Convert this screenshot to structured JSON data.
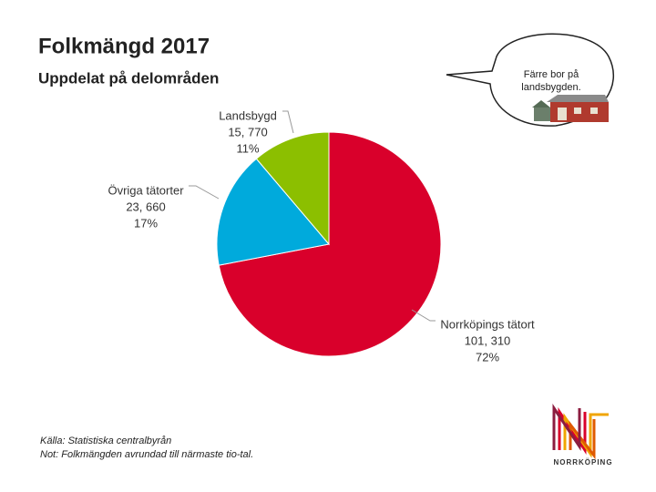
{
  "chart_data": {
    "type": "pie",
    "title": "Folkmängd 2017",
    "subtitle": "Uppdelat på delområden",
    "categories": [
      "Norrköpings tätort",
      "Övriga tätorter",
      "Landsbygd"
    ],
    "values": [
      101310,
      23660,
      15770
    ],
    "value_labels": [
      "101, 310",
      "23, 660",
      "15, 770"
    ],
    "percent_labels": [
      "72%",
      "17%",
      "11%"
    ],
    "colors": [
      "#d9002b",
      "#00aadc",
      "#8cbf00"
    ],
    "annotation": [
      "Färre bor på",
      "landsbygden."
    ],
    "source": [
      "Källa: Statistiska centralbyrån",
      "Not: Folkmängden avrundad till närmaste tio-tal."
    ],
    "brand": "NORRKÖPING"
  }
}
